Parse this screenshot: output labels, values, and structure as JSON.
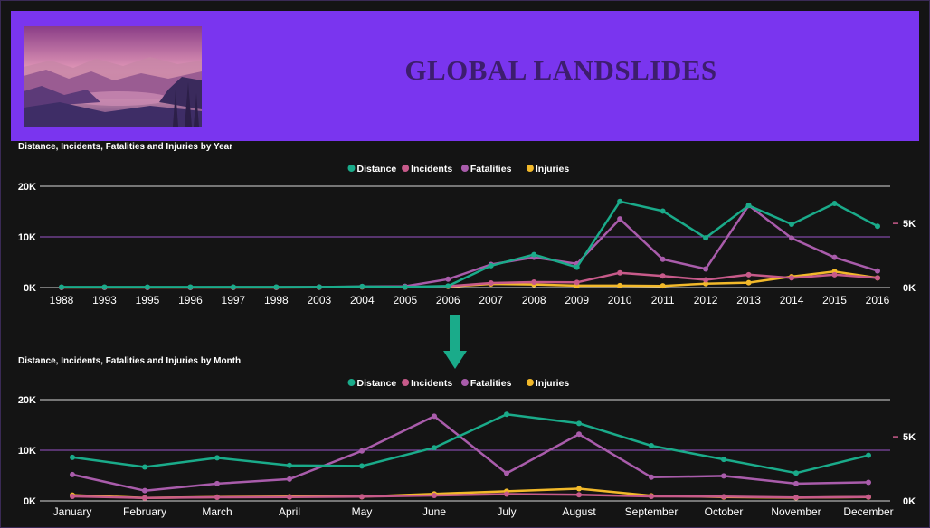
{
  "header": {
    "title": "GLOBAL LANDSLIDES",
    "color": "#7a35ef",
    "image": "landscape-illustration"
  },
  "colors": {
    "distance": "#1aab8a",
    "incidents": "#c75a8a",
    "fatalities": "#a95cab",
    "injuries": "#f2b92a"
  },
  "chart_data": [
    {
      "type": "line",
      "title": "Distance, Incidents, Fatalities and Injuries by Year",
      "legend_position": "top-center",
      "categories": [
        "1988",
        "1993",
        "1995",
        "1996",
        "1997",
        "1998",
        "2003",
        "2004",
        "2005",
        "2006",
        "2007",
        "2008",
        "2009",
        "2010",
        "2011",
        "2012",
        "2013",
        "2014",
        "2015",
        "2016"
      ],
      "y_left": {
        "ticks": [
          "0K",
          "10K",
          "20K"
        ],
        "range": [
          0,
          20000
        ]
      },
      "y_right": {
        "ticks": [
          "0K",
          "5K"
        ],
        "range": [
          0,
          7900
        ]
      },
      "series": [
        {
          "name": "Distance",
          "axis": "left",
          "color": "#1aab8a",
          "values": [
            100,
            100,
            100,
            100,
            100,
            100,
            100,
            200,
            100,
            300,
            4300,
            6500,
            4000,
            17000,
            15100,
            9800,
            16200,
            12500,
            16600,
            12100
          ]
        },
        {
          "name": "Incidents",
          "axis": "right",
          "color": "#c75a8a",
          "values": [
            10,
            10,
            10,
            10,
            10,
            10,
            20,
            60,
            30,
            100,
            350,
            420,
            400,
            1150,
            900,
            600,
            1000,
            750,
            1000,
            750
          ]
        },
        {
          "name": "Fatalities",
          "axis": "right",
          "color": "#a95cab",
          "values": [
            20,
            20,
            20,
            20,
            30,
            30,
            40,
            80,
            100,
            650,
            1800,
            2350,
            1850,
            5350,
            2200,
            1450,
            6400,
            3850,
            2350,
            1300
          ]
        },
        {
          "name": "Injuries",
          "axis": "right",
          "color": "#f2b92a",
          "values": [
            10,
            10,
            10,
            10,
            10,
            10,
            20,
            40,
            30,
            80,
            280,
            240,
            150,
            150,
            130,
            300,
            380,
            850,
            1250,
            750
          ]
        }
      ]
    },
    {
      "type": "line",
      "title": "Distance, Incidents, Fatalities and Injuries by Month",
      "legend_position": "top-center",
      "categories": [
        "January",
        "February",
        "March",
        "April",
        "May",
        "June",
        "July",
        "August",
        "September",
        "October",
        "November",
        "December"
      ],
      "y_left": {
        "ticks": [
          "0K",
          "10K",
          "20K"
        ],
        "range": [
          0,
          20000
        ]
      },
      "y_right": {
        "ticks": [
          "0K",
          "5K"
        ],
        "range": [
          0,
          7900
        ]
      },
      "series": [
        {
          "name": "Distance",
          "axis": "left",
          "color": "#1aab8a",
          "values": [
            8600,
            6700,
            8500,
            7000,
            6900,
            10500,
            17100,
            15300,
            10900,
            8200,
            5500,
            9000
          ]
        },
        {
          "name": "Incidents",
          "axis": "right",
          "color": "#c75a8a",
          "values": [
            350,
            230,
            280,
            300,
            330,
            420,
            530,
            480,
            350,
            330,
            260,
            310
          ]
        },
        {
          "name": "Fatalities",
          "axis": "right",
          "color": "#a95cab",
          "values": [
            2050,
            800,
            1350,
            1700,
            3900,
            6600,
            2150,
            5200,
            1850,
            1950,
            1350,
            1450
          ]
        },
        {
          "name": "Injuries",
          "axis": "right",
          "color": "#f2b92a",
          "values": [
            450,
            230,
            300,
            330,
            330,
            550,
            750,
            950,
            400,
            300,
            250,
            300
          ]
        }
      ]
    }
  ]
}
